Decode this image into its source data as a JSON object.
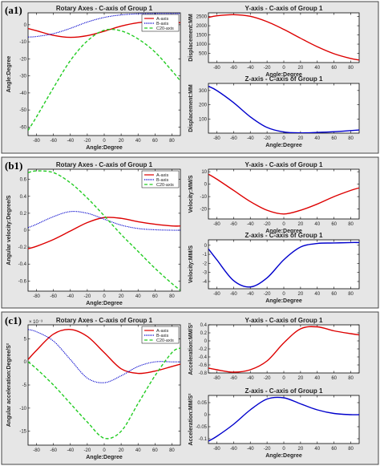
{
  "rows": [
    {
      "label": "(a1)",
      "left": {
        "title": "Rotary Axes - C-axis of Group 1",
        "xlabel": "Angle:Degree",
        "ylabel": "Angle:Degree",
        "exponent": "",
        "legend": [
          "A-axis",
          "B-axis",
          "C20-axis"
        ]
      },
      "right_top": {
        "title": "Y-axis - C-axis of Group 1",
        "xlabel": "Angle:Degree",
        "ylabel": "Displacement:MM"
      },
      "right_bottom": {
        "title": "Z-axis - C-axis of Group 1",
        "xlabel": "Angle:Degree",
        "ylabel": "Displacement:MM"
      }
    },
    {
      "label": "(b1)",
      "left": {
        "title": "Rotary Axes - C-axis of Group 1",
        "xlabel": "Angle:Degree",
        "ylabel": "Angular velocity:Degree/S",
        "exponent": "",
        "legend": [
          "A-axis",
          "B-axis",
          "C20-axis"
        ]
      },
      "right_top": {
        "title": "Y-axis - C-axis of Group 1",
        "xlabel": "Angle:Degree",
        "ylabel": "Velocity:MM/S"
      },
      "right_bottom": {
        "title": "Z-axis - C-axis of Group 1",
        "xlabel": "Angle:Degree",
        "ylabel": "Velocity:MM/S"
      }
    },
    {
      "label": "(c1)",
      "left": {
        "title": "Rotary Axes - C-axis of Group 1",
        "xlabel": "Angle:Degree",
        "ylabel": "Angular acceleration:Degree/S²",
        "exponent": "× 10⁻³",
        "legend": [
          "A-axis",
          "B-axis",
          "C20-axis"
        ]
      },
      "right_top": {
        "title": "Y-axis - C-axis of Group 1",
        "xlabel": "",
        "ylabel": "Acceleration:MM/S²"
      },
      "right_bottom": {
        "title": "Z-axis - C-axis of Group 1",
        "xlabel": "Angle:Degree",
        "ylabel": "Acceleration:MM/S²"
      }
    }
  ],
  "colors": {
    "a_axis": "#dd0000",
    "b_axis": "#0000cc",
    "c20_axis": "#22cc22",
    "y_axis": "#dd0000",
    "z_axis": "#0000cc"
  },
  "chart_data": [
    {
      "id": "a1-left",
      "type": "line",
      "title": "Rotary Axes - C-axis of Group 1",
      "xlabel": "Angle:Degree",
      "ylabel": "Angle:Degree",
      "xlim": [
        -90,
        90
      ],
      "ylim": [
        -65,
        7
      ],
      "xticks": [
        -80,
        -60,
        -40,
        -20,
        0,
        20,
        40,
        60,
        80
      ],
      "yticks": [
        -60,
        -50,
        -40,
        -30,
        -20,
        -10,
        0
      ],
      "legend_position": "top-right",
      "x": [
        -90,
        -80,
        -60,
        -40,
        -20,
        0,
        20,
        40,
        60,
        80,
        90
      ],
      "series": [
        {
          "name": "A-axis",
          "values": [
            -2.2,
            -3.5,
            -6.2,
            -7.4,
            -6.4,
            -3.8,
            -0.8,
            1.2,
            1.9,
            1.5,
            1.2
          ]
        },
        {
          "name": "B-axis",
          "values": [
            -7.2,
            -6.9,
            -5.2,
            -2.1,
            1.6,
            4.3,
            5.8,
            6.4,
            6.6,
            6.6,
            6.6
          ]
        },
        {
          "name": "C20-axis",
          "values": [
            -62,
            -54,
            -37,
            -21,
            -9.5,
            -3.2,
            -3.6,
            -8.3,
            -16,
            -27,
            -33
          ]
        }
      ]
    },
    {
      "id": "a1-y",
      "type": "line",
      "title": "Y-axis - C-axis of Group 1",
      "xlabel": "Angle:Degree",
      "ylabel": "Displacement:MM",
      "xlim": [
        -90,
        90
      ],
      "ylim": [
        0,
        2700
      ],
      "xticks": [
        -80,
        -60,
        -40,
        -20,
        0,
        20,
        40,
        60,
        80
      ],
      "yticks": [
        500,
        1000,
        1500,
        2000,
        2500
      ],
      "x": [
        -90,
        -80,
        -60,
        -40,
        -20,
        0,
        20,
        40,
        60,
        80,
        90
      ],
      "series": [
        {
          "name": "",
          "values": [
            2450,
            2540,
            2600,
            2510,
            2220,
            1800,
            1320,
            860,
            480,
            220,
            140
          ]
        }
      ]
    },
    {
      "id": "a1-z",
      "type": "line",
      "title": "Z-axis - C-axis of Group 1",
      "xlabel": "Angle:Degree",
      "ylabel": "Displacement:MM",
      "xlim": [
        -90,
        90
      ],
      "ylim": [
        0,
        350
      ],
      "xticks": [
        -80,
        -60,
        -40,
        -20,
        0,
        20,
        40,
        60,
        80
      ],
      "yticks": [
        100,
        200,
        300
      ],
      "x": [
        -90,
        -80,
        -60,
        -40,
        -20,
        0,
        20,
        40,
        60,
        80,
        90
      ],
      "series": [
        {
          "name": "",
          "values": [
            330,
            300,
            215,
            115,
            40,
            8,
            2,
            5,
            10,
            18,
            22
          ]
        }
      ]
    },
    {
      "id": "b1-left",
      "type": "line",
      "title": "Rotary Axes - C-axis of Group 1",
      "xlabel": "Angle:Degree",
      "ylabel": "Angular velocity:Degree/S",
      "xlim": [
        -90,
        90
      ],
      "ylim": [
        -0.72,
        0.72
      ],
      "xticks": [
        -80,
        -60,
        -40,
        -20,
        0,
        20,
        40,
        60,
        80
      ],
      "yticks": [
        -0.6,
        -0.4,
        -0.2,
        0,
        0.2,
        0.4,
        0.6
      ],
      "legend_position": "top-right",
      "x": [
        -90,
        -80,
        -60,
        -40,
        -20,
        0,
        20,
        40,
        60,
        80,
        90
      ],
      "series": [
        {
          "name": "A-axis",
          "values": [
            -0.22,
            -0.19,
            -0.11,
            -0.01,
            0.09,
            0.15,
            0.14,
            0.1,
            0.07,
            0.05,
            0.05
          ]
        },
        {
          "name": "B-axis",
          "values": [
            0.03,
            0.07,
            0.16,
            0.22,
            0.2,
            0.13,
            0.06,
            0.02,
            0.005,
            0,
            0
          ]
        },
        {
          "name": "C20-axis",
          "values": [
            0.68,
            0.7,
            0.68,
            0.56,
            0.38,
            0.17,
            -0.05,
            -0.25,
            -0.45,
            -0.63,
            -0.71
          ]
        }
      ]
    },
    {
      "id": "b1-y",
      "type": "line",
      "title": "Y-axis - C-axis of Group 1",
      "xlabel": "Angle:Degree",
      "ylabel": "Velocity:MM/S",
      "xlim": [
        -90,
        90
      ],
      "ylim": [
        -28,
        12
      ],
      "xticks": [
        -80,
        -60,
        -40,
        -20,
        0,
        20,
        40,
        60,
        80
      ],
      "yticks": [
        -20,
        -10,
        0,
        10
      ],
      "x": [
        -90,
        -80,
        -60,
        -40,
        -20,
        0,
        20,
        40,
        60,
        80,
        90
      ],
      "series": [
        {
          "name": "",
          "values": [
            8,
            4,
            -5,
            -14,
            -21,
            -24,
            -21,
            -16,
            -10,
            -5,
            -3
          ]
        }
      ]
    },
    {
      "id": "b1-z",
      "type": "line",
      "title": "Z-axis - C-axis of Group 1",
      "xlabel": "Angle:Degree",
      "ylabel": "Velocity:MM/S",
      "xlim": [
        -90,
        90
      ],
      "ylim": [
        -4.8,
        0.6
      ],
      "xticks": [
        -80,
        -60,
        -40,
        -20,
        0,
        20,
        40,
        60,
        80
      ],
      "yticks": [
        -4,
        -3,
        -2,
        -1,
        0
      ],
      "x": [
        -90,
        -80,
        -60,
        -40,
        -20,
        0,
        20,
        40,
        60,
        80,
        90
      ],
      "series": [
        {
          "name": "",
          "values": [
            -0.4,
            -1.6,
            -3.9,
            -4.6,
            -3.6,
            -1.6,
            -0.2,
            0.2,
            0.25,
            0.3,
            0.3
          ]
        }
      ]
    },
    {
      "id": "c1-left",
      "type": "line",
      "title": "Rotary Axes - C-axis of Group 1",
      "xlabel": "Angle:Degree",
      "ylabel": "Angular acceleration:Degree/S²",
      "xlim": [
        -90,
        90
      ],
      "ylim": [
        -18,
        8
      ],
      "xticks": [
        -80,
        -60,
        -40,
        -20,
        0,
        20,
        40,
        60,
        80
      ],
      "yticks": [
        -15,
        -10,
        -5,
        0,
        5
      ],
      "axis_multiplier": "× 10⁻³",
      "legend_position": "top-right",
      "x": [
        -90,
        -80,
        -60,
        -40,
        -20,
        0,
        20,
        40,
        60,
        80,
        90
      ],
      "series": [
        {
          "name": "A-axis",
          "values": [
            0.5,
            2.5,
            6,
            7,
            5.5,
            2,
            -1.5,
            -2.5,
            -2,
            -1,
            -0.5
          ]
        },
        {
          "name": "B-axis",
          "values": [
            7,
            6.5,
            4.5,
            0.5,
            -3.5,
            -4.5,
            -3,
            -1,
            0,
            0,
            0
          ]
        },
        {
          "name": "C20-axis",
          "values": [
            0,
            -1.5,
            -5,
            -9,
            -13,
            -16.5,
            -15,
            -9,
            -3,
            2,
            3
          ]
        }
      ]
    },
    {
      "id": "c1-y",
      "type": "line",
      "title": "Y-axis - C-axis of Group 1",
      "xlabel": "",
      "ylabel": "Acceleration:MM/S²",
      "xlim": [
        -90,
        90
      ],
      "ylim": [
        -0.8,
        0.4
      ],
      "xticks": [
        -80,
        -60,
        -40,
        -20,
        0,
        20,
        40,
        60,
        80
      ],
      "yticks": [
        -0.8,
        -0.6,
        -0.4,
        -0.2,
        0,
        0.2,
        0.4
      ],
      "x": [
        -90,
        -80,
        -60,
        -40,
        -20,
        0,
        20,
        40,
        60,
        80,
        90
      ],
      "series": [
        {
          "name": "",
          "values": [
            -0.68,
            -0.72,
            -0.78,
            -0.72,
            -0.5,
            -0.05,
            0.3,
            0.35,
            0.25,
            0.18,
            0.15
          ]
        }
      ]
    },
    {
      "id": "c1-z",
      "type": "line",
      "title": "Z-axis - C-axis of Group 1",
      "xlabel": "Angle:Degree",
      "ylabel": "Acceleration:MM/S²",
      "xlim": [
        -90,
        90
      ],
      "ylim": [
        -0.12,
        0.08
      ],
      "xticks": [
        -80,
        -60,
        -40,
        -20,
        0,
        20,
        40,
        60,
        80
      ],
      "yticks": [
        -0.1,
        -0.05,
        0,
        0.05
      ],
      "x": [
        -90,
        -80,
        -60,
        -40,
        -20,
        0,
        20,
        40,
        60,
        80,
        90
      ],
      "series": [
        {
          "name": "",
          "values": [
            -0.11,
            -0.09,
            -0.04,
            0.02,
            0.065,
            0.07,
            0.045,
            0.02,
            0.005,
            0,
            0
          ]
        }
      ]
    }
  ]
}
